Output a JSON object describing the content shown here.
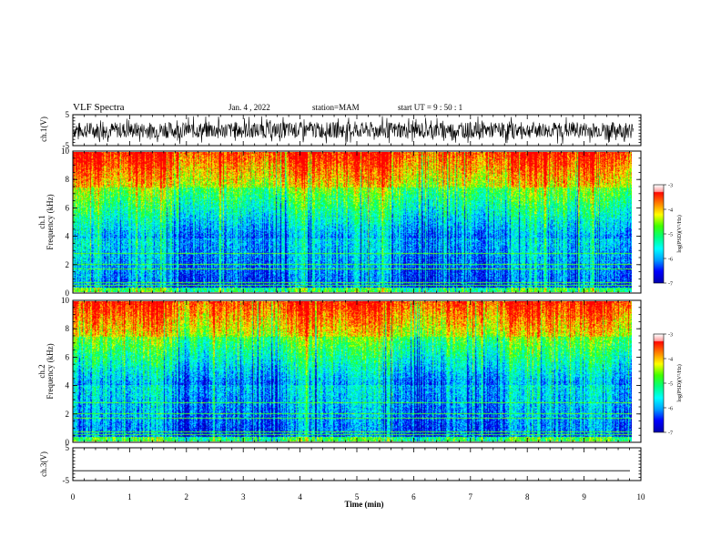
{
  "header": {
    "title": "VLF Spectra",
    "date": "Jan. 4 , 2022",
    "station": "station=MAM",
    "start_ut": "start  UT =   9 : 50 : 1"
  },
  "chart_data": [
    {
      "type": "line",
      "panel": "ch1-waveform",
      "ylabel": "ch.1(V)",
      "ylim": [
        -5,
        5
      ],
      "yticks": [
        5,
        -5
      ],
      "description_values": "dense noise waveform filling roughly -4 to 4 V"
    },
    {
      "type": "heatmap",
      "panel": "ch1-spectrogram",
      "ylabel_1": "ch.1",
      "ylabel_2": "Frequency  (kHz)",
      "ylim": [
        0,
        10
      ],
      "yticks": [
        0,
        2,
        4,
        6,
        8,
        10
      ],
      "colorbar": {
        "label": "log(PSD)(V²/Hz)",
        "range": [
          -7,
          -3
        ],
        "ticks": [
          "-3",
          "-4",
          "-5",
          "-6",
          "-7"
        ]
      }
    },
    {
      "type": "heatmap",
      "panel": "ch2-spectrogram",
      "ylabel_1": "ch.2",
      "ylabel_2": "Frequency  (kHz)",
      "ylim": [
        0,
        10
      ],
      "yticks": [
        0,
        2,
        4,
        6,
        8,
        10
      ],
      "colorbar": {
        "label": "log(PSD)(V²/Hz)",
        "range": [
          -7,
          -3
        ],
        "ticks": [
          "-3",
          "-4",
          "-5",
          "-6",
          "-7"
        ]
      }
    },
    {
      "type": "line",
      "panel": "ch3-waveform",
      "ylabel": "ch.3(V)",
      "ylim": [
        -5,
        5
      ],
      "yticks": [
        5,
        -5
      ],
      "values_note": "flat line near -2 V"
    }
  ],
  "xaxis": {
    "label": "Time  (min)",
    "ticks": [
      "0",
      "1",
      "2",
      "3",
      "4",
      "5",
      "6",
      "7",
      "8",
      "9",
      "10"
    ],
    "range": [
      0,
      10
    ]
  },
  "colors": {
    "colormap": [
      "#0000b0",
      "#0000ff",
      "#00a0ff",
      "#00ffff",
      "#00ff80",
      "#40ff00",
      "#ffff00",
      "#ff8000",
      "#ff0000",
      "#ffffff"
    ]
  }
}
